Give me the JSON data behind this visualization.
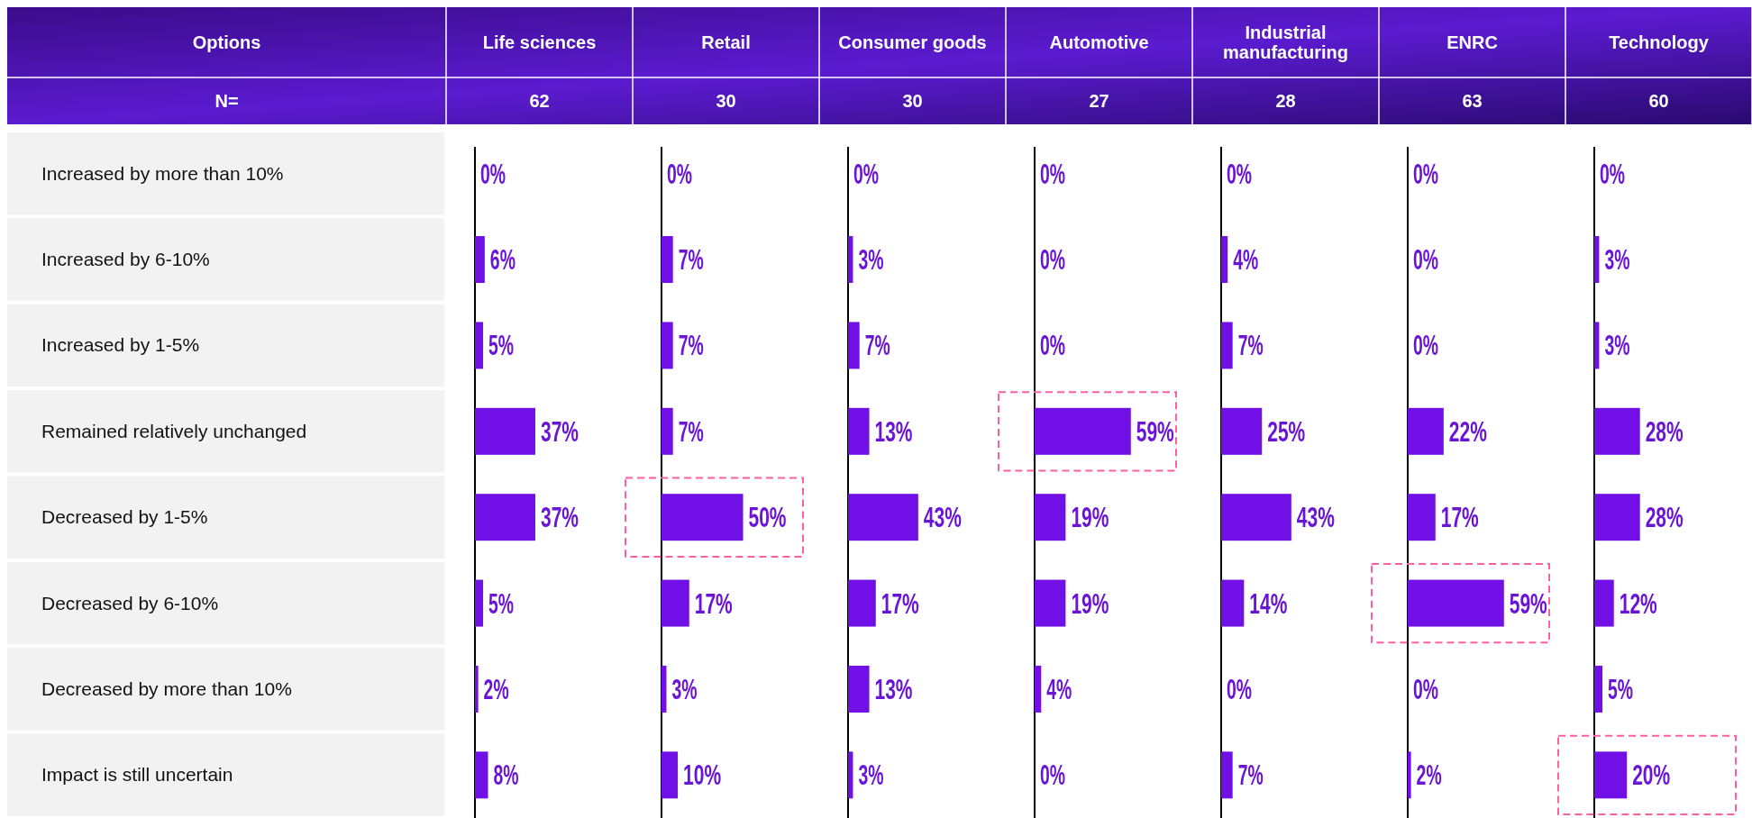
{
  "chart_data": [
    {
      "type": "bar",
      "orientation": "horizontal",
      "title": "Life sciences",
      "subtitle": "62",
      "annotations": [
        "Options",
        "N="
      ],
      "categories": [
        "Increased by more than 10%",
        "Increased by 6-10%",
        "Increased by 1-5%",
        "Remained relatively unchanged",
        "Decreased by 1-5%",
        "Decreased by 6-10%",
        "Decreased by more than 10%",
        "Impact is still uncertain"
      ],
      "values": [
        0,
        6,
        5,
        37,
        37,
        5,
        2,
        8
      ],
      "value_labels": [
        "0%",
        "6%",
        "5%",
        "37%",
        "37%",
        "5%",
        "2%",
        "8%"
      ],
      "color": "#7010e6",
      "tick_labels": "y"
    },
    {
      "type": "bar",
      "orientation": "horizontal",
      "title": "Retail",
      "subtitle": "30",
      "categories": [
        null,
        null,
        null,
        null,
        null,
        null,
        null,
        null
      ],
      "values": [
        0,
        7,
        7,
        7,
        50,
        17,
        3,
        10
      ],
      "value_labels": [
        "0%",
        "7%",
        "7%",
        "7%",
        "50%",
        "17%",
        "3%",
        "10%"
      ],
      "color": "#7010e6",
      "tick_labels": false
    },
    {
      "type": "bar",
      "orientation": "horizontal",
      "title": "Consumer goods",
      "subtitle": "30",
      "categories": [
        null,
        null,
        null,
        null,
        null,
        null,
        null,
        null
      ],
      "values": [
        0,
        3,
        7,
        13,
        43,
        17,
        13,
        3
      ],
      "value_labels": [
        "0%",
        "3%",
        "7%",
        "13%",
        "43%",
        "17%",
        "13%",
        "3%"
      ],
      "color": "#7010e6",
      "tick_labels": false
    },
    {
      "type": "bar",
      "orientation": "horizontal",
      "title": "Automotive",
      "subtitle": "27",
      "categories": [
        null,
        null,
        null,
        null,
        null,
        null,
        null,
        null
      ],
      "values": [
        0,
        0,
        0,
        59,
        19,
        19,
        4,
        0
      ],
      "value_labels": [
        "0%",
        "0%",
        "0%",
        "59%",
        "19%",
        "19%",
        "4%",
        "0%"
      ],
      "color": "#7010e6",
      "tick_labels": false
    },
    {
      "type": "bar",
      "orientation": "horizontal",
      "title": "Industrial manufacturing",
      "subtitle": "28",
      "categories": [
        null,
        null,
        null,
        null,
        null,
        null,
        null,
        null
      ],
      "values": [
        0,
        4,
        7,
        25,
        43,
        14,
        0,
        7
      ],
      "value_labels": [
        "0%",
        "4%",
        "7%",
        "25%",
        "43%",
        "14%",
        "0%",
        "7%"
      ],
      "color": "#7010e6",
      "tick_labels": false
    },
    {
      "type": "bar",
      "orientation": "horizontal",
      "title": "ENRC",
      "subtitle": "63",
      "categories": [
        null,
        null,
        null,
        null,
        null,
        null,
        null,
        null
      ],
      "values": [
        0,
        0,
        0,
        22,
        17,
        59,
        0,
        2
      ],
      "value_labels": [
        "0%",
        "0%",
        "0%",
        "22%",
        "17%",
        "59%",
        "0%",
        "2%"
      ],
      "color": "#7010e6",
      "tick_labels": false
    },
    {
      "type": "bar",
      "orientation": "horizontal",
      "title": "Technology",
      "subtitle": "60",
      "categories": [
        null,
        null,
        null,
        null,
        null,
        null,
        null,
        null
      ],
      "values": [
        0,
        3,
        3,
        28,
        28,
        12,
        5,
        20
      ],
      "value_labels": [
        "0%",
        "3%",
        "3%",
        "28%",
        "28%",
        "12%",
        "5%",
        "20%"
      ],
      "color": "#7010e6",
      "tick_labels": false
    }
  ]
}
